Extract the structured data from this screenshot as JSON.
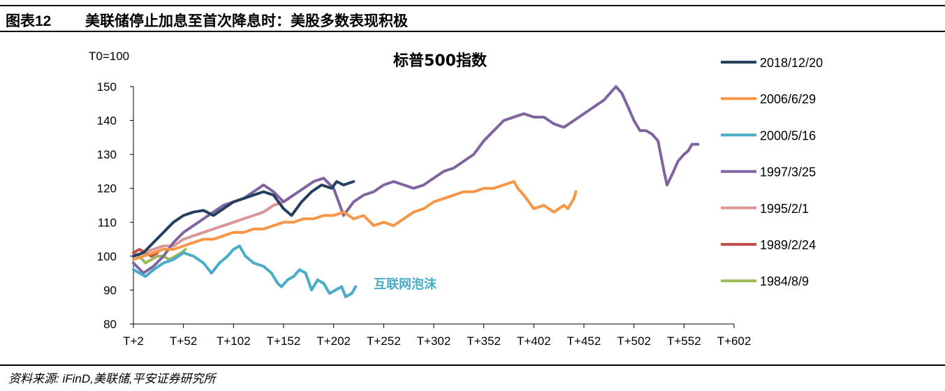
{
  "header": {
    "figure_number": "图表12",
    "title": "美联储停止加息至首次降息时：美股多数表现积极"
  },
  "source": "资料来源: iFinD,美联储,平安证券研究所",
  "chart_data": {
    "type": "line",
    "title": "标普500指数",
    "ylabel": "T0=100",
    "xlabel": "",
    "ylim": [
      80,
      150
    ],
    "xlim": [
      2,
      602
    ],
    "y_ticks": [
      80,
      90,
      100,
      110,
      120,
      130,
      140,
      150
    ],
    "x_ticks": [
      2,
      52,
      102,
      152,
      202,
      252,
      302,
      352,
      402,
      452,
      502,
      552,
      602
    ],
    "x_tick_labels": [
      "T+2",
      "T+52",
      "T+102",
      "T+152",
      "T+202",
      "T+252",
      "T+302",
      "T+352",
      "T+402",
      "T+452",
      "T+502",
      "T+552",
      "T+602"
    ],
    "legend_position": "right",
    "annotation": {
      "text": "互联网泡沫",
      "x": 242,
      "y": 90.5,
      "color": "#4aadc7"
    },
    "series": [
      {
        "name": "2018/12/20",
        "color": "#243f60",
        "points": [
          [
            2,
            100
          ],
          [
            12,
            101
          ],
          [
            22,
            104
          ],
          [
            32,
            107
          ],
          [
            42,
            110
          ],
          [
            52,
            112
          ],
          [
            62,
            113
          ],
          [
            72,
            113.5
          ],
          [
            82,
            112
          ],
          [
            92,
            114
          ],
          [
            102,
            116
          ],
          [
            112,
            117
          ],
          [
            122,
            118
          ],
          [
            132,
            119
          ],
          [
            142,
            118
          ],
          [
            152,
            114
          ],
          [
            160,
            112
          ],
          [
            170,
            116
          ],
          [
            180,
            119
          ],
          [
            190,
            121
          ],
          [
            200,
            120
          ],
          [
            205,
            122
          ],
          [
            212,
            121
          ],
          [
            222,
            122
          ]
        ]
      },
      {
        "name": "2006/6/29",
        "color": "#f79646",
        "points": [
          [
            2,
            99
          ],
          [
            12,
            100
          ],
          [
            22,
            101
          ],
          [
            32,
            102
          ],
          [
            42,
            102
          ],
          [
            52,
            103
          ],
          [
            62,
            104
          ],
          [
            72,
            105
          ],
          [
            82,
            105
          ],
          [
            92,
            106
          ],
          [
            102,
            107
          ],
          [
            112,
            107
          ],
          [
            122,
            108
          ],
          [
            132,
            108
          ],
          [
            142,
            109
          ],
          [
            152,
            110
          ],
          [
            162,
            110
          ],
          [
            172,
            111
          ],
          [
            182,
            111
          ],
          [
            192,
            112
          ],
          [
            202,
            112
          ],
          [
            212,
            113
          ],
          [
            222,
            111
          ],
          [
            232,
            112
          ],
          [
            242,
            109
          ],
          [
            252,
            110
          ],
          [
            262,
            109
          ],
          [
            272,
            111
          ],
          [
            282,
            113
          ],
          [
            292,
            114
          ],
          [
            302,
            116
          ],
          [
            312,
            117
          ],
          [
            322,
            118
          ],
          [
            332,
            119
          ],
          [
            342,
            119
          ],
          [
            352,
            120
          ],
          [
            362,
            120
          ],
          [
            372,
            121
          ],
          [
            382,
            122
          ],
          [
            386,
            120
          ],
          [
            392,
            118
          ],
          [
            402,
            114
          ],
          [
            412,
            115
          ],
          [
            422,
            113
          ],
          [
            432,
            115
          ],
          [
            436,
            114
          ],
          [
            442,
            117
          ],
          [
            444,
            119
          ]
        ]
      },
      {
        "name": "2000/5/16",
        "color": "#4aadc7",
        "points": [
          [
            2,
            96
          ],
          [
            8,
            95
          ],
          [
            14,
            94
          ],
          [
            22,
            96
          ],
          [
            32,
            98
          ],
          [
            42,
            99
          ],
          [
            52,
            101
          ],
          [
            62,
            100
          ],
          [
            72,
            98
          ],
          [
            80,
            95
          ],
          [
            88,
            98
          ],
          [
            96,
            100
          ],
          [
            102,
            102
          ],
          [
            108,
            103
          ],
          [
            114,
            100
          ],
          [
            122,
            98
          ],
          [
            132,
            97
          ],
          [
            140,
            95
          ],
          [
            146,
            92
          ],
          [
            150,
            91
          ],
          [
            156,
            93
          ],
          [
            162,
            94
          ],
          [
            168,
            96
          ],
          [
            174,
            95
          ],
          [
            180,
            90
          ],
          [
            186,
            93
          ],
          [
            192,
            92
          ],
          [
            198,
            89
          ],
          [
            204,
            90
          ],
          [
            210,
            91
          ],
          [
            214,
            88
          ],
          [
            220,
            89
          ],
          [
            224,
            91
          ]
        ]
      },
      {
        "name": "1997/3/25",
        "color": "#8064a2",
        "points": [
          [
            2,
            98
          ],
          [
            12,
            95
          ],
          [
            22,
            97
          ],
          [
            32,
            100
          ],
          [
            42,
            104
          ],
          [
            52,
            107
          ],
          [
            62,
            109
          ],
          [
            72,
            111
          ],
          [
            82,
            113
          ],
          [
            92,
            115
          ],
          [
            102,
            116
          ],
          [
            112,
            117
          ],
          [
            122,
            119
          ],
          [
            132,
            121
          ],
          [
            142,
            119
          ],
          [
            152,
            116
          ],
          [
            162,
            118
          ],
          [
            172,
            120
          ],
          [
            182,
            122
          ],
          [
            192,
            123
          ],
          [
            202,
            120
          ],
          [
            212,
            112
          ],
          [
            222,
            116
          ],
          [
            232,
            118
          ],
          [
            242,
            119
          ],
          [
            252,
            121
          ],
          [
            262,
            122
          ],
          [
            272,
            121
          ],
          [
            282,
            120
          ],
          [
            292,
            121
          ],
          [
            302,
            123
          ],
          [
            312,
            125
          ],
          [
            322,
            126
          ],
          [
            332,
            128
          ],
          [
            342,
            130
          ],
          [
            352,
            134
          ],
          [
            362,
            137
          ],
          [
            372,
            140
          ],
          [
            382,
            141
          ],
          [
            392,
            142
          ],
          [
            402,
            141
          ],
          [
            412,
            141
          ],
          [
            422,
            139
          ],
          [
            432,
            138
          ],
          [
            442,
            140
          ],
          [
            452,
            142
          ],
          [
            462,
            144
          ],
          [
            472,
            146
          ],
          [
            478,
            148
          ],
          [
            484,
            150
          ],
          [
            490,
            148
          ],
          [
            496,
            144
          ],
          [
            502,
            140
          ],
          [
            508,
            137
          ],
          [
            514,
            137
          ],
          [
            520,
            136
          ],
          [
            526,
            134
          ],
          [
            532,
            125
          ],
          [
            535,
            121
          ],
          [
            540,
            124
          ],
          [
            546,
            128
          ],
          [
            552,
            130
          ],
          [
            556,
            131
          ],
          [
            560,
            133
          ],
          [
            566,
            133
          ]
        ]
      },
      {
        "name": "1995/2/1",
        "color": "#d99694",
        "points": [
          [
            2,
            100
          ],
          [
            12,
            101
          ],
          [
            22,
            102
          ],
          [
            32,
            103
          ],
          [
            42,
            103
          ],
          [
            52,
            105
          ],
          [
            62,
            106
          ],
          [
            72,
            107
          ],
          [
            82,
            108
          ],
          [
            92,
            109
          ],
          [
            102,
            110
          ],
          [
            112,
            111
          ],
          [
            122,
            112
          ],
          [
            132,
            113
          ],
          [
            142,
            115
          ],
          [
            152,
            116
          ],
          [
            162,
            118
          ]
        ]
      },
      {
        "name": "1989/2/24",
        "color": "#c0504d",
        "points": [
          [
            2,
            101
          ],
          [
            8,
            102
          ],
          [
            14,
            101
          ],
          [
            20,
            100
          ],
          [
            26,
            101
          ]
        ]
      },
      {
        "name": "1984/8/9",
        "color": "#9bbb59",
        "points": [
          [
            2,
            101
          ],
          [
            8,
            100
          ],
          [
            14,
            98
          ],
          [
            20,
            99
          ],
          [
            26,
            100
          ],
          [
            32,
            100
          ],
          [
            38,
            99
          ],
          [
            44,
            100
          ],
          [
            50,
            101
          ],
          [
            54,
            102
          ]
        ]
      }
    ]
  }
}
